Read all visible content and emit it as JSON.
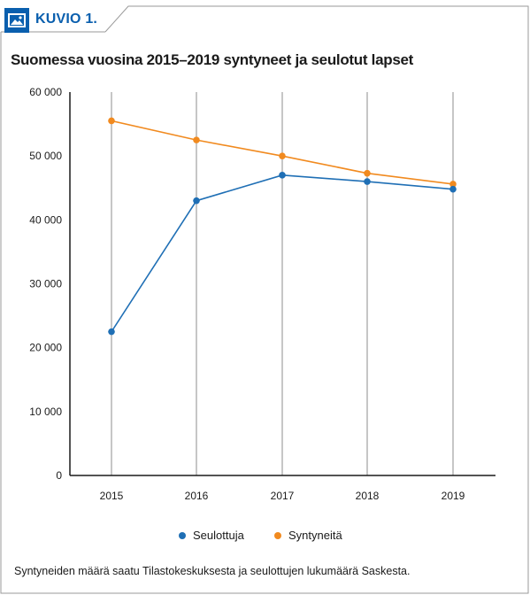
{
  "figure": {
    "badge_label": "KUVIO 1.",
    "title": "Suomessa vuosina 2015–2019 syntyneet ja seulotut lapset",
    "footnote": "Syntyneiden määrä saatu Tilastokeskuksesta ja seulottujen lukumäärä Saskesta."
  },
  "colors": {
    "accent": "#0a5fae",
    "seulottuja": "#1f6fb5",
    "syntyneita": "#f18a1f",
    "grid": "#8c8c8c"
  },
  "chart_data": {
    "type": "line",
    "title": "Suomessa vuosina 2015–2019 syntyneet ja seulotut lapset",
    "xlabel": "",
    "ylabel": "",
    "categories": [
      "2015",
      "2016",
      "2017",
      "2018",
      "2019"
    ],
    "ylim": [
      0,
      60000
    ],
    "yticks": [
      0,
      10000,
      20000,
      30000,
      40000,
      50000,
      60000
    ],
    "ytick_labels": [
      "0",
      "10 000",
      "20 000",
      "30 000",
      "40 000",
      "50 000",
      "60 000"
    ],
    "grid": "vertical",
    "legend": "bottom",
    "series": [
      {
        "name": "Seulottuja",
        "color": "#1f6fb5",
        "values": [
          22500,
          43000,
          47000,
          46000,
          44800
        ]
      },
      {
        "name": "Syntyneitä",
        "color": "#f18a1f",
        "values": [
          55500,
          52500,
          50000,
          47300,
          45600
        ]
      }
    ]
  }
}
